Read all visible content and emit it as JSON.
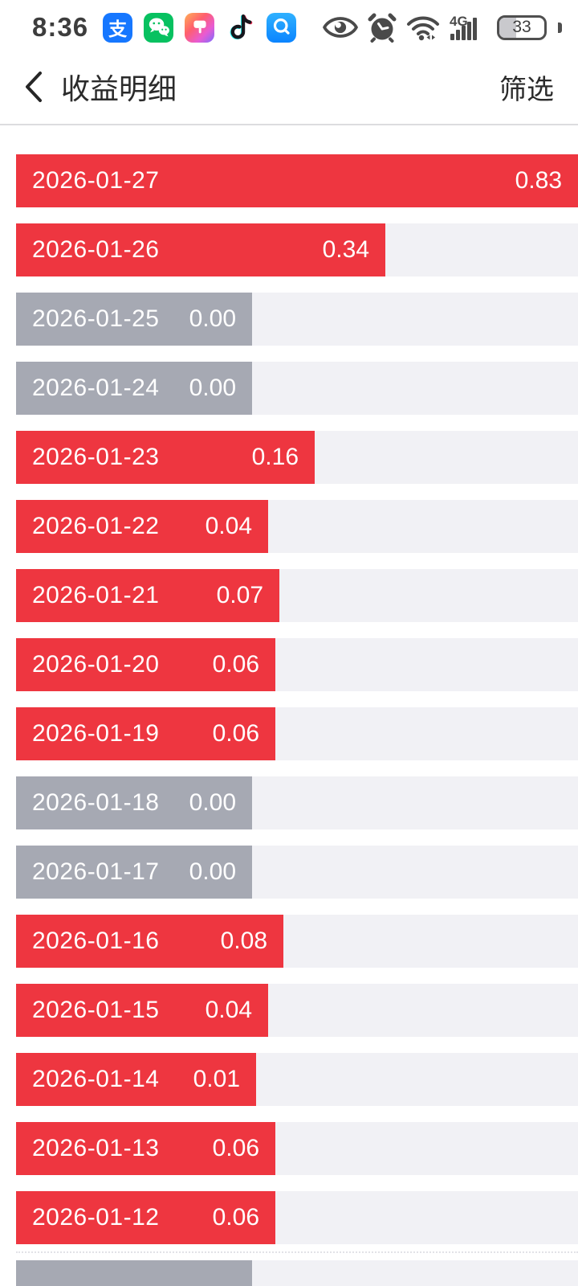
{
  "status_bar": {
    "time": "8:36",
    "network_type": "4G",
    "battery_percent": "33",
    "app_icons": [
      {
        "name": "alipay-icon",
        "glyph": "支"
      },
      {
        "name": "wechat-icon"
      },
      {
        "name": "themes-icon"
      },
      {
        "name": "douyin-icon"
      },
      {
        "name": "quark-search-icon"
      }
    ],
    "system_icons": [
      "eye-protection-icon",
      "alarm-icon",
      "wifi-icon",
      "signal-icon",
      "battery-icon"
    ]
  },
  "nav": {
    "title": "收益明细",
    "filter_label": "筛选"
  },
  "chart_data": {
    "type": "bar",
    "orientation": "horizontal",
    "title": "收益明细",
    "categories": [
      "2026-01-27",
      "2026-01-26",
      "2026-01-25",
      "2026-01-24",
      "2026-01-23",
      "2026-01-22",
      "2026-01-21",
      "2026-01-20",
      "2026-01-19",
      "2026-01-18",
      "2026-01-17",
      "2026-01-16",
      "2026-01-15",
      "2026-01-14",
      "2026-01-13",
      "2026-01-12"
    ],
    "values": [
      0.83,
      0.34,
      0.0,
      0.0,
      0.16,
      0.04,
      0.07,
      0.06,
      0.06,
      0.0,
      0.0,
      0.08,
      0.04,
      0.01,
      0.06,
      0.06
    ],
    "max_value": 0.83,
    "xlim": [
      0,
      0.83
    ],
    "colors": {
      "positive": "#ee3640",
      "zero": "#a6a9b3",
      "track": "#f1f1f5"
    },
    "rows": [
      {
        "date": "2026-01-27",
        "value": "0.83"
      },
      {
        "date": "2026-01-26",
        "value": "0.34"
      },
      {
        "date": "2026-01-25",
        "value": "0.00"
      },
      {
        "date": "2026-01-24",
        "value": "0.00"
      },
      {
        "date": "2026-01-23",
        "value": "0.16"
      },
      {
        "date": "2026-01-22",
        "value": "0.04"
      },
      {
        "date": "2026-01-21",
        "value": "0.07"
      },
      {
        "date": "2026-01-20",
        "value": "0.06"
      },
      {
        "date": "2026-01-19",
        "value": "0.06"
      },
      {
        "date": "2026-01-18",
        "value": "0.00"
      },
      {
        "date": "2026-01-17",
        "value": "0.00"
      },
      {
        "date": "2026-01-16",
        "value": "0.08"
      },
      {
        "date": "2026-01-15",
        "value": "0.04"
      },
      {
        "date": "2026-01-14",
        "value": "0.01"
      },
      {
        "date": "2026-01-13",
        "value": "0.06"
      },
      {
        "date": "2026-01-12",
        "value": "0.06"
      },
      {
        "date": "",
        "value": "",
        "partial": true
      }
    ]
  }
}
